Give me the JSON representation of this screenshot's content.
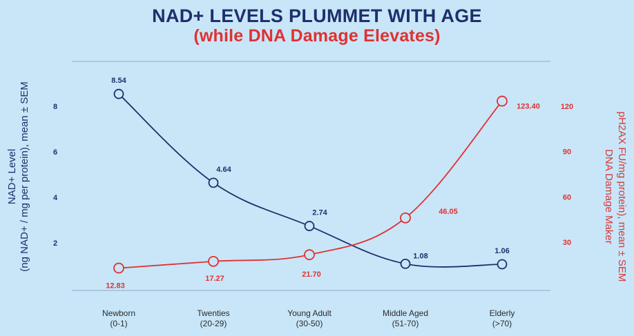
{
  "title": "NAD+ LEVELS PLUMMET WITH AGE",
  "subtitle": "(while DNA Damage Elevates)",
  "colors": {
    "nad": "#1f2f6b",
    "damage": "#e03131",
    "background": "#c8e6f8",
    "axis": "#8fa9bf"
  },
  "chart_data": {
    "type": "line",
    "title": "NAD+ LEVELS PLUMMET WITH AGE",
    "subtitle": "(while DNA Damage Elevates)",
    "categories": [
      {
        "name": "Newborn",
        "range": "(0-1)"
      },
      {
        "name": "Twenties",
        "range": "(20-29)"
      },
      {
        "name": "Young Adult",
        "range": "(30-50)"
      },
      {
        "name": "Middle Aged",
        "range": "(51-70)"
      },
      {
        "name": "Elderly",
        "range": "(>70)"
      }
    ],
    "ylabel_left": [
      "NAD+ Level",
      "(ng NAD+ / mg per protein), mean ± SEM"
    ],
    "ylabel_right": [
      "DNA Damage Maker",
      "pH2AX FU/mg protein), mean ± SEM"
    ],
    "yticks_left": [
      2,
      4,
      6,
      8
    ],
    "yticks_right": [
      30,
      60,
      90,
      120
    ],
    "ylim_left": [
      0,
      10
    ],
    "ylim_right": [
      0,
      150
    ],
    "grid": false,
    "series": [
      {
        "values": [
          8.54,
          4.64,
          2.74,
          1.08,
          1.06
        ],
        "labels": [
          "8.54",
          "4.64",
          "2.74",
          "1.08",
          "1.06"
        ],
        "axis": "left",
        "color": "#1f2f6b"
      },
      {
        "values": [
          12.83,
          17.27,
          21.7,
          46.05,
          123.4
        ],
        "labels": [
          "12.83",
          "17.27",
          "21.70",
          "46.05",
          "123.40"
        ],
        "axis": "right",
        "color": "#e03131"
      }
    ]
  }
}
